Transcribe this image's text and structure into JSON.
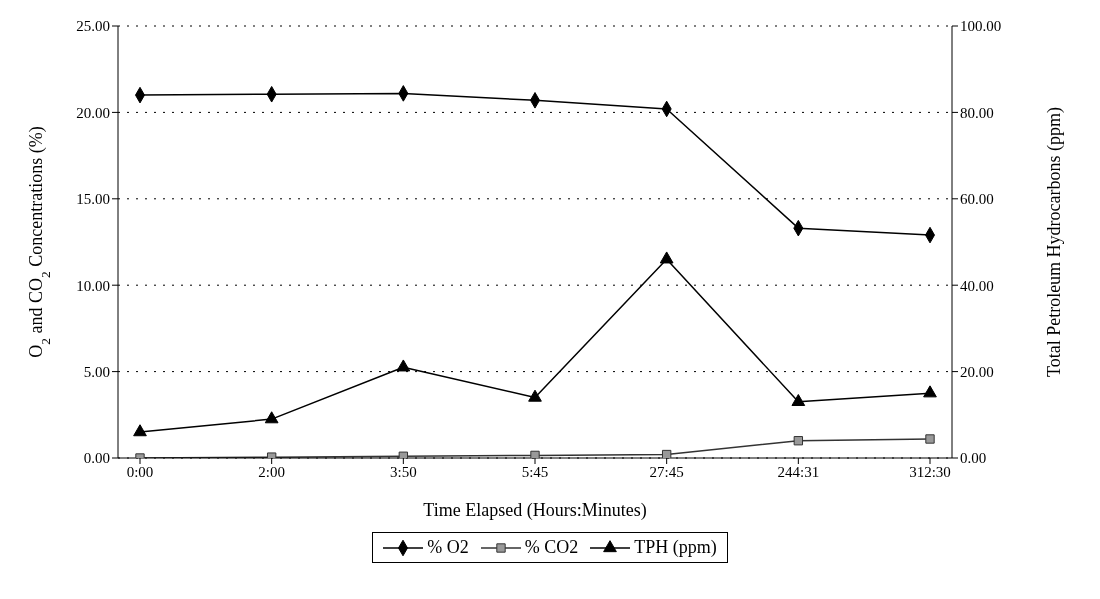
{
  "chart_data": {
    "type": "line",
    "xlabel": "Time Elapsed (Hours:Minutes)",
    "ylabel": "O$_{2}$ and CO$_{2}$ Concentrations (%)",
    "y2label": "Total Petroleum Hydrocarbons (ppm)",
    "categories": [
      "0:00",
      "2:00",
      "3:50",
      "5:45",
      "27:45",
      "244:31",
      "312:30"
    ],
    "series": [
      {
        "name": "% O2",
        "color": "#000000",
        "marker": "diamond",
        "values": [
          21.0,
          21.05,
          21.1,
          20.7,
          20.2,
          13.3,
          12.9
        ]
      },
      {
        "name": "% CO2",
        "color": "#333333",
        "marker": "square",
        "values": [
          0,
          0.05,
          0.1,
          0.15,
          0.2,
          1.0,
          1.1
        ]
      },
      {
        "name": "TPH (ppm)",
        "color": "#000000",
        "marker": "triangle",
        "axis": "y2",
        "values": [
          6,
          9,
          21,
          14,
          46,
          13,
          15
        ]
      }
    ],
    "ylim": [
      0,
      25
    ],
    "yticks": [
      {
        "value": 0,
        "label": "0.00"
      },
      {
        "value": 5,
        "label": "5.00"
      },
      {
        "value": 10,
        "label": "10.00"
      },
      {
        "value": 15,
        "label": "15.00"
      },
      {
        "value": 20,
        "label": "20.00"
      },
      {
        "value": 25,
        "label": "25.00"
      }
    ],
    "y2lim": [
      0,
      100
    ],
    "y2ticks": [
      {
        "value": 0,
        "label": "0.00"
      },
      {
        "value": 20,
        "label": "20.00"
      },
      {
        "value": 40,
        "label": "40.00"
      },
      {
        "value": 60,
        "label": "60.00"
      },
      {
        "value": 80,
        "label": "80.00"
      },
      {
        "value": 100,
        "label": "100.00"
      }
    ],
    "grid": "y",
    "legend": "bottom",
    "line_style": "solid"
  }
}
